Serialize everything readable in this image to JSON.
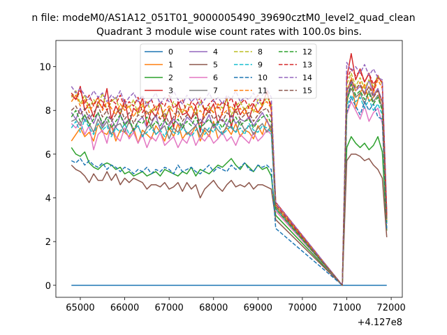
{
  "suptitle": "n file: modeM0/AS1A12_051T01_9000005490_39690cztM0_level2_quad_clean",
  "chart_data": {
    "type": "line",
    "title": "Quadrant 3 module wise count rates with 100.0s bins.",
    "xlabel": "",
    "ylabel": "",
    "x_offset_label": "+4.127e8",
    "x_offset": 412700000,
    "xlim": [
      64450,
      72250
    ],
    "ylim": [
      -0.55,
      11.2
    ],
    "xticks": [
      65000,
      66000,
      67000,
      68000,
      69000,
      70000,
      71000,
      72000
    ],
    "yticks": [
      0,
      2,
      4,
      6,
      8,
      10
    ],
    "grid": false,
    "legend_position": "top-center",
    "legend_columns": 4,
    "gap": [
      69300,
      70900
    ],
    "x": {
      "start": 64800,
      "step": 100,
      "end": 71900
    },
    "series": [
      {
        "name": "0",
        "color": "#1f77b4",
        "dash": "solid",
        "values": [
          0.0,
          0.0
        ]
      },
      {
        "name": "1",
        "color": "#ff7f0e",
        "dash": "solid",
        "values": [
          6.6,
          6.9,
          7.2,
          6.8,
          7.0,
          6.6,
          7.4,
          7.0,
          6.9,
          7.3,
          6.6,
          7.1,
          7.0,
          6.8,
          7.2,
          6.5,
          7.1,
          6.9,
          6.7,
          7.3,
          7.0,
          6.6,
          7.2,
          6.8,
          7.4,
          6.7,
          7.0,
          6.9,
          7.3,
          6.6,
          7.1,
          6.8,
          7.5,
          6.7,
          7.0,
          7.2,
          6.9,
          7.4,
          6.8,
          7.1,
          7.0,
          6.7,
          7.3,
          6.9,
          7.6,
          7.0,
          3.4,
          0.0,
          8.3,
          9.4,
          8.1,
          8.8,
          9.2,
          8.4,
          8.6,
          9.0,
          8.0,
          3.0
        ]
      },
      {
        "name": "2",
        "color": "#2ca02c",
        "dash": "solid",
        "values": [
          6.3,
          6.0,
          5.9,
          6.1,
          5.6,
          5.4,
          5.3,
          5.5,
          5.6,
          5.5,
          5.3,
          5.4,
          5.1,
          5.2,
          5.0,
          5.1,
          5.2,
          5.0,
          5.1,
          5.2,
          5.0,
          5.3,
          5.2,
          5.1,
          5.0,
          5.2,
          5.1,
          5.4,
          5.0,
          5.3,
          5.2,
          5.1,
          5.3,
          5.5,
          5.4,
          5.6,
          5.8,
          5.5,
          5.3,
          5.6,
          5.4,
          5.2,
          5.5,
          5.3,
          5.4,
          5.0,
          3.2,
          0.0,
          6.3,
          6.8,
          6.5,
          6.3,
          6.5,
          6.2,
          6.4,
          6.8,
          6.1,
          2.5
        ]
      },
      {
        "name": "3",
        "color": "#d62728",
        "dash": "solid",
        "values": [
          8.7,
          8.5,
          9.1,
          8.0,
          8.3,
          7.7,
          8.4,
          8.1,
          9.0,
          7.6,
          8.2,
          7.8,
          8.5,
          7.4,
          8.1,
          7.9,
          8.6,
          7.3,
          8.0,
          7.7,
          8.3,
          7.5,
          8.1,
          7.2,
          8.4,
          7.8,
          7.9,
          7.6,
          8.2,
          7.0,
          8.1,
          7.9,
          8.3,
          7.4,
          7.9,
          8.6,
          7.2,
          8.4,
          7.8,
          8.1,
          7.6,
          8.3,
          7.9,
          8.2,
          8.9,
          8.0,
          3.8,
          0.0,
          9.5,
          10.6,
          9.4,
          9.9,
          9.3,
          9.7,
          8.9,
          9.6,
          9.2,
          3.3
        ]
      },
      {
        "name": "4",
        "color": "#9467bd",
        "dash": "solid",
        "values": [
          7.9,
          7.6,
          8.1,
          7.5,
          7.8,
          7.4,
          7.9,
          7.3,
          7.7,
          7.6,
          7.2,
          7.8,
          7.4,
          7.6,
          7.0,
          7.5,
          7.7,
          7.2,
          7.4,
          7.8,
          7.1,
          7.5,
          7.3,
          7.6,
          7.4,
          7.2,
          7.7,
          7.5,
          7.3,
          7.6,
          7.4,
          7.8,
          7.2,
          7.5,
          7.6,
          7.3,
          7.8,
          7.4,
          7.6,
          7.5,
          7.7,
          7.3,
          7.6,
          7.9,
          7.5,
          7.2,
          3.6,
          0.0,
          8.6,
          9.3,
          8.9,
          9.1,
          8.8,
          9.4,
          8.7,
          9.0,
          8.4,
          3.0
        ]
      },
      {
        "name": "5",
        "color": "#8c564b",
        "dash": "solid",
        "values": [
          5.5,
          5.3,
          5.2,
          5.0,
          4.7,
          5.1,
          4.8,
          4.8,
          5.2,
          4.8,
          5.1,
          4.6,
          4.9,
          4.7,
          4.9,
          4.8,
          4.7,
          4.4,
          4.6,
          4.6,
          4.5,
          4.7,
          4.4,
          4.5,
          4.7,
          4.3,
          4.7,
          4.4,
          4.6,
          4.0,
          4.4,
          4.6,
          4.8,
          4.5,
          4.3,
          4.6,
          4.8,
          4.5,
          4.6,
          4.5,
          4.7,
          4.4,
          4.6,
          4.6,
          4.5,
          4.4,
          3.0,
          0.0,
          5.7,
          6.0,
          6.0,
          5.9,
          5.7,
          5.8,
          5.5,
          5.3,
          4.9,
          2.2
        ]
      },
      {
        "name": "6",
        "color": "#e377c2",
        "dash": "solid",
        "values": [
          7.4,
          7.2,
          7.5,
          6.9,
          7.3,
          6.2,
          6.9,
          7.1,
          6.5,
          7.4,
          6.8,
          6.6,
          7.2,
          6.7,
          7.0,
          6.5,
          6.9,
          6.3,
          6.8,
          6.6,
          7.0,
          6.4,
          6.6,
          6.8,
          6.3,
          6.7,
          6.5,
          7.0,
          6.4,
          6.8,
          6.6,
          6.9,
          6.5,
          6.7,
          7.0,
          6.6,
          6.8,
          6.4,
          6.9,
          6.7,
          6.5,
          7.0,
          6.6,
          6.8,
          7.1,
          6.9,
          3.4,
          0.0,
          7.8,
          8.4,
          8.0,
          7.6,
          8.2,
          7.5,
          7.9,
          8.1,
          7.4,
          2.8
        ]
      },
      {
        "name": "7",
        "color": "#7f7f7f",
        "dash": "solid",
        "values": [
          7.5,
          7.6,
          7.3,
          7.8,
          7.4,
          7.0,
          7.6,
          7.2,
          7.5,
          6.9,
          7.3,
          7.4,
          7.0,
          7.5,
          7.1,
          7.3,
          6.8,
          7.2,
          7.4,
          6.9,
          7.1,
          7.3,
          6.7,
          7.2,
          7.0,
          7.4,
          6.9,
          7.1,
          7.3,
          6.8,
          7.2,
          7.0,
          7.4,
          7.1,
          6.9,
          7.3,
          7.2,
          7.0,
          7.5,
          7.1,
          7.3,
          6.9,
          7.2,
          7.4,
          7.0,
          7.3,
          3.5,
          0.0,
          8.5,
          9.0,
          8.6,
          8.8,
          8.3,
          8.9,
          8.4,
          8.7,
          8.1,
          2.9
        ]
      },
      {
        "name": "8",
        "color": "#bcbd22",
        "dash": "dashed",
        "values": [
          8.6,
          8.9,
          8.3,
          8.7,
          8.1,
          8.5,
          8.2,
          8.8,
          8.0,
          8.4,
          8.6,
          7.9,
          8.3,
          8.1,
          8.5,
          7.8,
          8.2,
          8.4,
          7.9,
          8.1,
          8.3,
          7.7,
          8.0,
          8.4,
          8.1,
          7.9,
          8.3,
          8.2,
          7.8,
          8.4,
          8.0,
          8.2,
          7.9,
          8.3,
          8.1,
          8.5,
          7.8,
          8.2,
          8.4,
          8.0,
          8.3,
          7.9,
          8.5,
          8.2,
          8.6,
          8.3,
          3.7,
          0.0,
          9.2,
          9.7,
          9.1,
          9.5,
          9.0,
          9.4,
          9.1,
          9.6,
          9.2,
          3.1
        ]
      },
      {
        "name": "9",
        "color": "#17becf",
        "dash": "dashed",
        "values": [
          7.2,
          7.5,
          7.0,
          7.6,
          7.2,
          6.9,
          7.4,
          7.1,
          7.3,
          6.8,
          7.2,
          7.0,
          7.4,
          6.9,
          7.1,
          7.3,
          6.8,
          7.0,
          7.2,
          6.9,
          7.1,
          6.8,
          7.3,
          7.0,
          6.9,
          7.2,
          7.0,
          6.8,
          7.1,
          7.3,
          6.9,
          7.2,
          7.0,
          7.4,
          6.9,
          7.1,
          7.3,
          7.0,
          7.2,
          6.9,
          7.4,
          7.1,
          7.0,
          7.3,
          7.2,
          7.0,
          3.5,
          0.0,
          8.2,
          8.7,
          8.4,
          8.6,
          8.1,
          8.5,
          8.0,
          8.3,
          7.8,
          2.8
        ]
      },
      {
        "name": "10",
        "color": "#1f77b4",
        "dash": "dashed",
        "values": [
          5.7,
          5.6,
          5.8,
          5.5,
          5.7,
          5.5,
          5.4,
          5.6,
          5.3,
          5.5,
          5.4,
          5.2,
          5.4,
          5.3,
          5.1,
          5.3,
          5.2,
          5.4,
          5.1,
          5.3,
          5.2,
          5.4,
          5.3,
          5.1,
          5.5,
          5.2,
          5.3,
          5.4,
          5.2,
          5.1,
          5.3,
          5.5,
          5.2,
          5.4,
          5.3,
          5.2,
          5.5,
          5.3,
          5.4,
          5.6,
          5.3,
          5.2,
          5.5,
          5.4,
          5.5,
          5.3,
          2.6,
          0.0,
          7.9,
          8.6,
          8.2,
          7.8,
          8.4,
          8.0,
          8.3,
          7.7,
          7.6,
          2.6
        ]
      },
      {
        "name": "11",
        "color": "#ff7f0e",
        "dash": "dashed",
        "values": [
          8.4,
          8.7,
          8.2,
          8.5,
          7.9,
          8.3,
          8.6,
          8.0,
          8.4,
          8.1,
          7.8,
          8.3,
          8.0,
          8.2,
          7.7,
          8.1,
          8.3,
          7.8,
          8.0,
          8.2,
          7.6,
          8.0,
          8.2,
          7.9,
          7.7,
          8.1,
          7.9,
          8.2,
          7.8,
          8.0,
          7.7,
          8.1,
          7.9,
          8.3,
          7.8,
          8.0,
          8.2,
          7.9,
          8.1,
          7.8,
          8.2,
          8.0,
          7.9,
          8.3,
          8.4,
          8.1,
          3.6,
          0.0,
          8.8,
          9.5,
          8.9,
          9.3,
          8.7,
          9.1,
          8.8,
          9.4,
          9.0,
          3.0
        ]
      },
      {
        "name": "12",
        "color": "#2ca02c",
        "dash": "dashed",
        "values": [
          7.7,
          8.0,
          7.5,
          7.8,
          7.3,
          7.6,
          7.9,
          7.4,
          7.7,
          7.2,
          7.5,
          7.8,
          7.3,
          7.6,
          7.1,
          7.5,
          7.4,
          7.7,
          7.2,
          7.5,
          7.3,
          7.6,
          7.1,
          7.4,
          7.6,
          7.2,
          7.5,
          7.3,
          7.7,
          7.2,
          7.4,
          7.6,
          7.3,
          7.5,
          7.2,
          7.6,
          7.4,
          7.7,
          7.3,
          7.5,
          7.6,
          7.2,
          7.5,
          7.7,
          7.8,
          7.4,
          3.5,
          0.0,
          8.4,
          9.2,
          8.7,
          8.9,
          8.5,
          8.8,
          8.3,
          8.6,
          8.0,
          2.9
        ]
      },
      {
        "name": "13",
        "color": "#d62728",
        "dash": "dashed",
        "values": [
          8.8,
          8.5,
          8.9,
          8.3,
          8.7,
          8.2,
          8.6,
          8.4,
          8.0,
          8.5,
          8.3,
          8.7,
          8.1,
          8.4,
          8.2,
          8.6,
          7.9,
          8.3,
          8.5,
          8.0,
          8.4,
          8.2,
          8.7,
          8.1,
          8.3,
          8.5,
          7.9,
          8.4,
          8.2,
          8.6,
          8.0,
          8.3,
          8.5,
          8.1,
          8.4,
          8.2,
          8.6,
          8.0,
          8.3,
          8.5,
          8.1,
          8.4,
          8.7,
          8.3,
          8.8,
          8.2,
          3.7,
          0.0,
          9.4,
          9.9,
          9.6,
          9.8,
          9.3,
          9.7,
          9.2,
          9.5,
          9.3,
          3.2
        ]
      },
      {
        "name": "14",
        "color": "#9467bd",
        "dash": "dashed",
        "values": [
          9.1,
          8.8,
          9.0,
          8.7,
          8.5,
          8.9,
          8.6,
          8.8,
          8.4,
          8.7,
          8.5,
          8.9,
          8.3,
          8.6,
          8.8,
          8.4,
          8.7,
          8.2,
          8.5,
          8.8,
          8.3,
          8.6,
          8.4,
          8.9,
          8.5,
          8.3,
          8.7,
          8.4,
          8.6,
          8.2,
          8.5,
          8.8,
          8.4,
          8.6,
          8.3,
          8.7,
          8.5,
          8.9,
          8.4,
          8.6,
          8.5,
          8.8,
          8.3,
          8.7,
          9.0,
          8.6,
          3.8,
          0.0,
          10.2,
          9.8,
          10.0,
          9.7,
          10.1,
          9.6,
          9.9,
          9.5,
          9.4,
          3.4
        ]
      },
      {
        "name": "15",
        "color": "#8c564b",
        "dash": "dashed",
        "values": [
          8.0,
          8.2,
          7.8,
          8.1,
          7.6,
          7.9,
          8.2,
          7.7,
          8.0,
          7.5,
          7.8,
          8.1,
          7.6,
          7.9,
          7.4,
          7.8,
          7.7,
          8.0,
          7.5,
          7.8,
          7.6,
          7.9,
          7.4,
          7.7,
          8.0,
          7.5,
          7.8,
          7.6,
          7.9,
          7.4,
          7.7,
          8.0,
          7.6,
          7.8,
          7.5,
          7.9,
          7.7,
          8.0,
          7.6,
          7.8,
          7.9,
          7.5,
          7.8,
          8.0,
          8.1,
          7.7,
          3.6,
          0.0,
          8.9,
          9.4,
          9.0,
          9.2,
          8.7,
          9.1,
          8.6,
          8.9,
          8.4,
          3.0
        ]
      }
    ]
  }
}
